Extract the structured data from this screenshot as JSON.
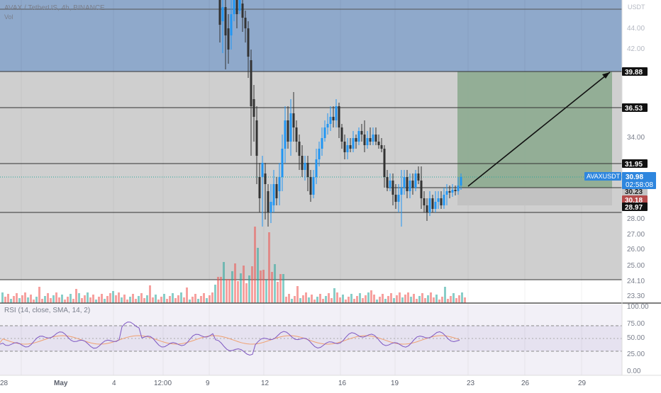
{
  "header": {
    "symbol_line": "AVAX / TetherUS, 4h, BINANCE",
    "volume_label": "Vol"
  },
  "rsi": {
    "label": "RSI (14, close, SMA, 14, 2)"
  },
  "price_axis": {
    "unit_label": "USDT",
    "ticks": [
      "44.00",
      "42.00",
      "34.00",
      "28.00",
      "27.00",
      "26.00",
      "25.00",
      "24.10",
      "23.30"
    ]
  },
  "rsi_axis": {
    "ticks": [
      "100.00",
      "75.00",
      "50.00",
      "25.00",
      "0.00"
    ]
  },
  "time_axis": {
    "ticks": [
      "28",
      "May",
      "4",
      "12:00",
      "9",
      "12",
      "16",
      "19",
      "23",
      "26",
      "29"
    ]
  },
  "price_markers": [
    {
      "label": "39.88",
      "style": "dark-outline"
    },
    {
      "label": "36.53",
      "style": "dark-outline"
    },
    {
      "label": "31.95",
      "style": "dark-outline"
    },
    {
      "label": "30.23",
      "style": "grey"
    },
    {
      "label": "30.18",
      "style": "red"
    },
    {
      "label": "28.97",
      "style": "dark-outline"
    }
  ],
  "current_price": {
    "symbol": "AVAXUSDT",
    "price": "30.98",
    "countdown": "02:58:08"
  },
  "colors": {
    "up": "#26a69a",
    "up_candle": "#2196f3",
    "down": "#ef5350",
    "body_down": "#333333",
    "top_zone": "#8fa9cb",
    "profit_zone": "#8fac92",
    "loss_zone": "#c2c2c2",
    "background_zone": "#cfcfcf",
    "price_tag": "#2e86de"
  }
}
